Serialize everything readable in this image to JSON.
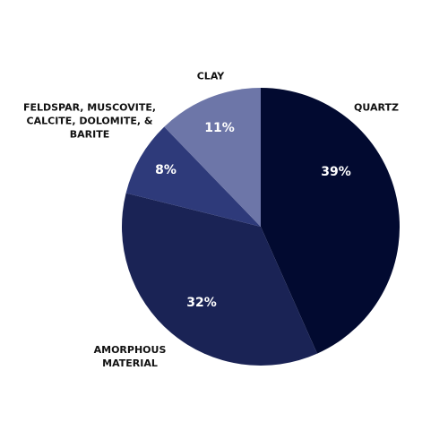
{
  "chart_data": {
    "type": "pie",
    "categories": [
      "QUARTZ",
      "AMORPHOUS MATERIAL",
      "FELDSPAR, MUSCOVITE, CALCITE, DOLOMITE, & BARITE",
      "CLAY"
    ],
    "values": [
      39,
      32,
      8,
      11
    ],
    "value_labels": [
      "39%",
      "32%",
      "8%",
      "11%"
    ],
    "colors": [
      "#020a30",
      "#1a2355",
      "#2e3a7a",
      "#6d76a8"
    ]
  }
}
